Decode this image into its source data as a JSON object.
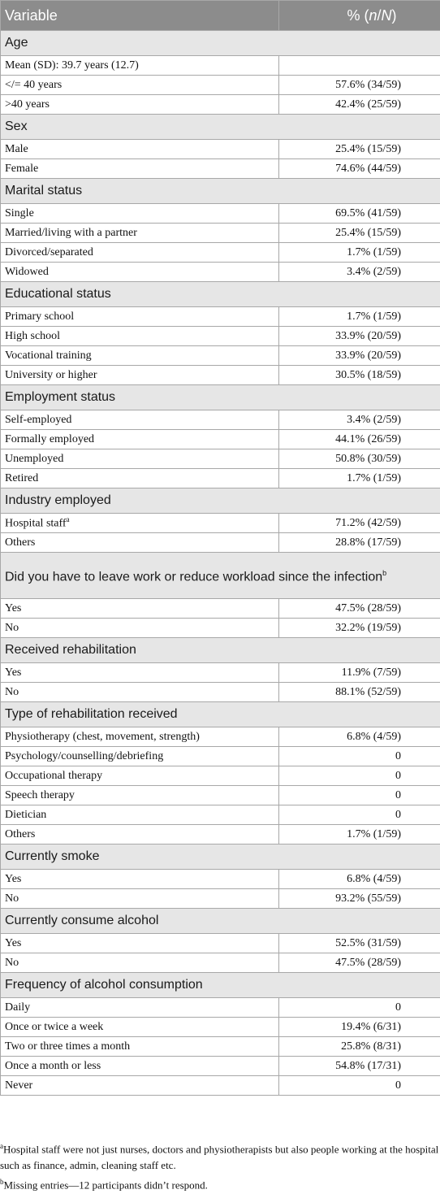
{
  "header": {
    "variable": "Variable",
    "value": "% (n/N)"
  },
  "sections": [
    {
      "title": "Age",
      "rows": [
        {
          "label": "Mean (SD): 39.7 years (12.7)",
          "value": ""
        },
        {
          "label": "</= 40 years",
          "value": "57.6% (34/59)"
        },
        {
          "label": ">40 years",
          "value": "42.4% (25/59)"
        }
      ]
    },
    {
      "title": "Sex",
      "rows": [
        {
          "label": "Male",
          "value": "25.4% (15/59)"
        },
        {
          "label": "Female",
          "value": "74.6% (44/59)"
        }
      ]
    },
    {
      "title": "Marital status",
      "rows": [
        {
          "label": "Single",
          "value": "69.5% (41/59)"
        },
        {
          "label": "Married/living with a partner",
          "value": "25.4% (15/59)"
        },
        {
          "label": "Divorced/separated",
          "value": "1.7% (1/59)"
        },
        {
          "label": "Widowed",
          "value": "3.4% (2/59)"
        }
      ]
    },
    {
      "title": "Educational status",
      "rows": [
        {
          "label": "Primary school",
          "value": "1.7% (1/59)"
        },
        {
          "label": "High school",
          "value": "33.9% (20/59)"
        },
        {
          "label": "Vocational training",
          "value": "33.9% (20/59)"
        },
        {
          "label": "University or higher",
          "value": "30.5% (18/59)"
        }
      ]
    },
    {
      "title": "Employment status",
      "rows": [
        {
          "label": "Self-employed",
          "value": "3.4% (2/59)"
        },
        {
          "label": "Formally employed",
          "value": "44.1% (26/59)"
        },
        {
          "label": "Unemployed",
          "value": "50.8% (30/59)"
        },
        {
          "label": "Retired",
          "value": "1.7% (1/59)"
        }
      ]
    },
    {
      "title": "Industry employed",
      "rows": [
        {
          "label": "Hospital staff",
          "sup": "a",
          "value": "71.2% (42/59)"
        },
        {
          "label": "Others",
          "value": "28.8% (17/59)"
        }
      ]
    },
    {
      "title": "Did you have to leave work or reduce workload since the infection",
      "sup": "b",
      "rows": [
        {
          "label": "Yes",
          "value": "47.5% (28/59)"
        },
        {
          "label": "No",
          "value": "32.2% (19/59)"
        }
      ]
    },
    {
      "title": "Received rehabilitation",
      "rows": [
        {
          "label": "Yes",
          "value": "11.9% (7/59)"
        },
        {
          "label": "No",
          "value": "88.1% (52/59)"
        }
      ]
    },
    {
      "title": "Type of rehabilitation received",
      "rows": [
        {
          "label": "Physiotherapy (chest, movement, strength)",
          "value": "6.8% (4/59)"
        },
        {
          "label": "Psychology/counselling/debriefing",
          "value": "0"
        },
        {
          "label": "Occupational therapy",
          "value": "0"
        },
        {
          "label": "Speech therapy",
          "value": "0"
        },
        {
          "label": "Dietician",
          "value": "0"
        },
        {
          "label": "Others",
          "value": "1.7% (1/59)"
        }
      ]
    },
    {
      "title": "Currently smoke",
      "rows": [
        {
          "label": "Yes",
          "value": "6.8% (4/59)"
        },
        {
          "label": "No",
          "value": "93.2% (55/59)"
        }
      ]
    },
    {
      "title": "Currently consume alcohol",
      "rows": [
        {
          "label": "Yes",
          "value": "52.5% (31/59)"
        },
        {
          "label": "No",
          "value": "47.5% (28/59)"
        }
      ]
    },
    {
      "title": "Frequency of alcohol consumption",
      "rows": [
        {
          "label": "Daily",
          "value": "0"
        },
        {
          "label": "Once or twice a week",
          "value": "19.4% (6/31)"
        },
        {
          "label": "Two or three times a month",
          "value": "25.8% (8/31)"
        },
        {
          "label": "Once a month or less",
          "value": "54.8% (17/31)"
        },
        {
          "label": "Never",
          "value": "0"
        }
      ]
    }
  ],
  "footnotes": [
    {
      "sup": "a",
      "text": "Hospital staff were not just nurses, doctors and physiotherapists but also people working at the hospital such as finance, admin, cleaning staff etc."
    },
    {
      "sup": "b",
      "text": "Missing entries—12 participants didn’t respond."
    }
  ]
}
